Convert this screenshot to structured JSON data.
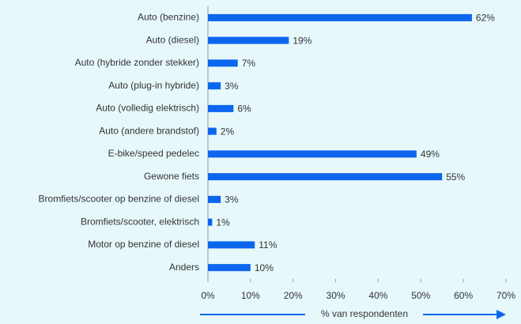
{
  "chart_data": {
    "type": "bar",
    "orientation": "horizontal",
    "categories": [
      "Auto (benzine)",
      "Auto (diesel)",
      "Auto (hybride zonder stekker)",
      "Auto (plug-in hybride)",
      "Auto (volledig elektrisch)",
      "Auto (andere brandstof)",
      "E-bike/speed pedelec",
      "Gewone fiets",
      "Bromfiets/scooter op benzine of diesel",
      "Bromfiets/scooter, elektrisch",
      "Motor op benzine of diesel",
      "Anders"
    ],
    "values": [
      62,
      19,
      7,
      3,
      6,
      2,
      49,
      55,
      3,
      1,
      11,
      10
    ],
    "value_labels": [
      "62%",
      "19%",
      "7%",
      "3%",
      "6%",
      "2%",
      "49%",
      "55%",
      "3%",
      "1%",
      "11%",
      "10%"
    ],
    "color": "#0c66ee",
    "xlim": [
      0,
      70
    ],
    "xticks": [
      {
        "value": 0,
        "label": "0%"
      },
      {
        "value": 10,
        "label": "10%"
      },
      {
        "value": 20,
        "label": "20%"
      },
      {
        "value": 30,
        "label": "30%"
      },
      {
        "value": 40,
        "label": "40%"
      },
      {
        "value": 50,
        "label": "50%"
      },
      {
        "value": 60,
        "label": "60%"
      },
      {
        "value": 70,
        "label": "70%"
      }
    ],
    "x_label": "% van respondenten"
  }
}
